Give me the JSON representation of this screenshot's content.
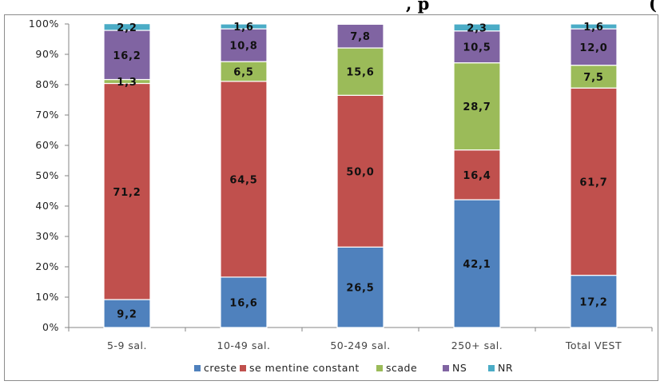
{
  "header_fragments": {
    "left": ", p",
    "right": "("
  },
  "chart_data": {
    "type": "bar",
    "stacked": true,
    "percent": true,
    "categories": [
      "5-9 sal.",
      "10-49 sal.",
      "50-249 sal.",
      "250+ sal.",
      "Total VEST"
    ],
    "series": [
      {
        "name": "creste",
        "color": "#4F81BD",
        "values": [
          9.2,
          16.6,
          26.5,
          42.1,
          17.2
        ]
      },
      {
        "name": "se mentine constant",
        "color": "#C0504D",
        "values": [
          71.2,
          64.5,
          50.0,
          16.4,
          61.7
        ]
      },
      {
        "name": "scade",
        "color": "#9BBB59",
        "values": [
          1.3,
          6.5,
          15.6,
          28.7,
          7.5
        ]
      },
      {
        "name": "NS",
        "color": "#8064A2",
        "values": [
          16.2,
          10.8,
          7.8,
          10.5,
          12.0
        ]
      },
      {
        "name": "NR",
        "color": "#4BACC6",
        "values": [
          2.2,
          1.6,
          0.0,
          2.3,
          1.6
        ]
      }
    ],
    "data_labels": [
      [
        "9,2",
        "71,2",
        "1,3",
        "16,2",
        "2,2"
      ],
      [
        "16,6",
        "64,5",
        "6,5",
        "10,8",
        "1,6"
      ],
      [
        "26,5",
        "50,0",
        "15,6",
        "7,8",
        ""
      ],
      [
        "42,1",
        "16,4",
        "28,7",
        "10,5",
        "2,3"
      ],
      [
        "17,2",
        "61,7",
        "7,5",
        "12,0",
        "1,6"
      ]
    ],
    "y_ticks": [
      "0%",
      "10%",
      "20%",
      "30%",
      "40%",
      "50%",
      "60%",
      "70%",
      "80%",
      "90%",
      "100%"
    ],
    "ylim": [
      0,
      100
    ],
    "grid": false,
    "legend_position": "bottom"
  }
}
